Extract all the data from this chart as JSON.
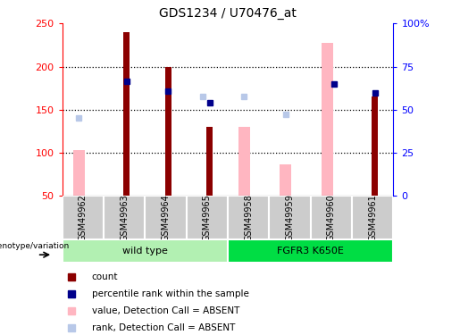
{
  "title": "GDS1234 / U70476_at",
  "samples": [
    "GSM49962",
    "GSM49963",
    "GSM49964",
    "GSM49965",
    "GSM49958",
    "GSM49959",
    "GSM49960",
    "GSM49961"
  ],
  "count_values": [
    null,
    240,
    200,
    130,
    null,
    null,
    null,
    165
  ],
  "percentile_rank": [
    null,
    183,
    172,
    158,
    null,
    null,
    180,
    170
  ],
  "absent_value": [
    103,
    null,
    null,
    null,
    130,
    87,
    227,
    null
  ],
  "absent_rank": [
    140,
    null,
    null,
    165,
    165,
    145,
    null,
    null
  ],
  "ylim": [
    50,
    250
  ],
  "yticks_left": [
    50,
    100,
    150,
    200,
    250
  ],
  "ytick_labels_right": [
    "0",
    "25",
    "50",
    "75",
    "100%"
  ],
  "group1_label": "wild type",
  "group2_label": "FGFR3 K650E",
  "group1_color": "#b2f0b2",
  "group2_color": "#00dd44",
  "color_count": "#8B0000",
  "color_rank": "#00008B",
  "color_absent_value": "#FFB6C1",
  "color_absent_rank": "#B8C8E8",
  "bar_bottom": 50,
  "grid_lines": [
    100,
    150,
    200
  ],
  "legend_items": [
    "count",
    "percentile rank within the sample",
    "value, Detection Call = ABSENT",
    "rank, Detection Call = ABSENT"
  ],
  "genotype_label": "genotype/variation"
}
